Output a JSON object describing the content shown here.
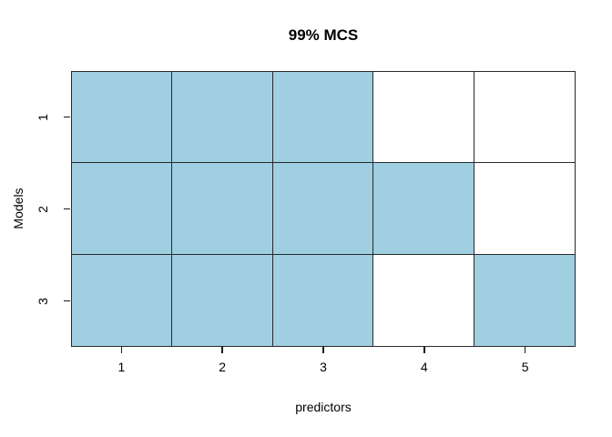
{
  "chart_data": {
    "type": "heatmap",
    "title": "99% MCS",
    "xlabel": "predictors",
    "ylabel": "Models",
    "x_tick_labels": [
      "1",
      "2",
      "3",
      "4",
      "5"
    ],
    "y_tick_labels": [
      "1",
      "2",
      "3"
    ],
    "rows": 3,
    "cols": 5,
    "matrix_note": "1 = predictor included in model (filled cell), 0 = not included (white cell); rows are Models 1-3 top to bottom, columns are predictors 1-5 left to right",
    "matrix": [
      [
        1,
        1,
        1,
        0,
        0
      ],
      [
        1,
        1,
        1,
        1,
        0
      ],
      [
        1,
        1,
        1,
        0,
        1
      ]
    ],
    "colors": {
      "filled_cell": "#9fcfe1",
      "empty_cell": "#ffffff",
      "grid_line": "#2a2a2a",
      "tick": "#1a1a1a",
      "text": "#000000",
      "background": "#ffffff"
    },
    "layout_hints": {
      "grid": "on (cell borders)",
      "legend": "none",
      "x_axis": "ticks below plot at column centers",
      "y_axis": "rotated tick labels at row centers"
    }
  }
}
